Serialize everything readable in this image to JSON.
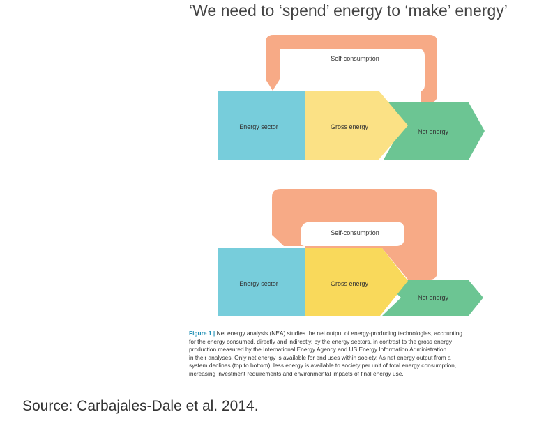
{
  "title": "‘We need to ‘spend’ energy to ‘make’ energy’",
  "diagrams": [
    {
      "self_consumption": "Self-consumption",
      "energy_sector": "Energy sector",
      "gross_energy": "Gross energy",
      "net_energy": "Net energy"
    },
    {
      "self_consumption": "Self-consumption",
      "energy_sector": "Energy sector",
      "gross_energy": "Gross energy",
      "net_energy": "Net energy"
    }
  ],
  "caption": {
    "figure_label": "Figure 1 |",
    "lines": [
      "Net energy analysis (NEA) studies the net output of energy-producing technologies, accounting",
      "for the energy consumed, directly and indirectly, by the energy sectors, in contrast to the gross energy",
      "production measured by the International Energy Agency and US Energy Information Administration",
      "in their analyses. Only net energy is available for end uses within society. As net energy output from a",
      "system declines (top to bottom), less energy is available to society per unit of total energy consumption,",
      "increasing investment requirements and environmental impacts of final energy use."
    ]
  },
  "source": "Source: Carbajales-Dale et al. 2014.",
  "colors": {
    "energy_sector": "#77cddb",
    "gross_energy_top": "#fbe185",
    "gross_energy_bottom": "#f9d95b",
    "net_energy": "#6cc593",
    "self_consumption": "#f7aa86"
  }
}
